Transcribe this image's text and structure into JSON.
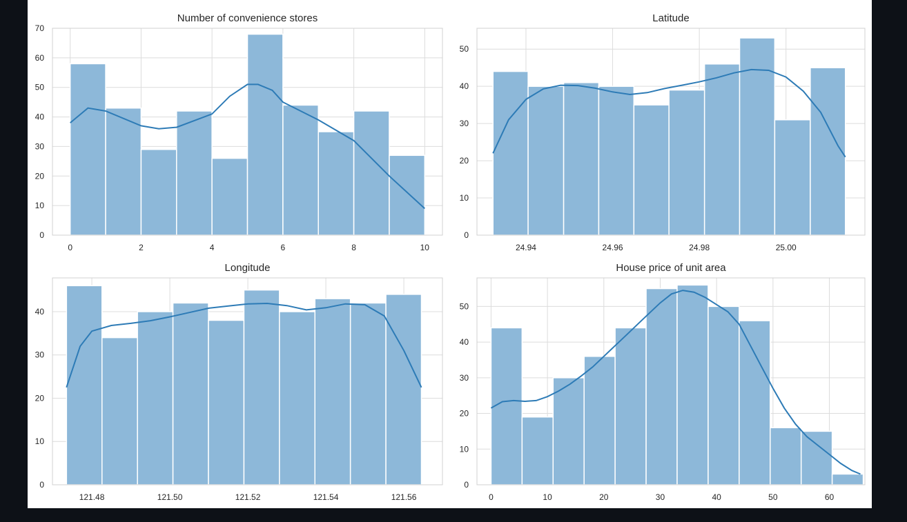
{
  "colors": {
    "page_background": "#0d1117",
    "panel_background": "#ffffff",
    "bar_fill": "#8db8d9",
    "kde_line": "#2d7bb6",
    "grid": "#dcdcdc"
  },
  "chart_data": [
    {
      "type": "bar",
      "subtype": "histogram-with-kde",
      "title": "Number of convenience stores",
      "xlabel": "",
      "ylabel": "",
      "xlim": [
        -0.5,
        10.5
      ],
      "ylim": [
        0,
        70
      ],
      "xticks": [
        0,
        2,
        4,
        6,
        8,
        10
      ],
      "xtick_labels": [
        "0",
        "2",
        "4",
        "6",
        "8",
        "10"
      ],
      "yticks": [
        0,
        10,
        20,
        30,
        40,
        50,
        60,
        70
      ],
      "ytick_labels": [
        "0",
        "10",
        "20",
        "30",
        "40",
        "50",
        "60",
        "70"
      ],
      "bin_edges": [
        0,
        1,
        2,
        3,
        4,
        5,
        6,
        7,
        8,
        9,
        10
      ],
      "values": [
        58,
        43,
        29,
        42,
        26,
        68,
        44,
        35,
        42,
        27
      ],
      "kde": {
        "x": [
          0,
          0.5,
          1,
          2,
          2.5,
          3,
          4,
          4.5,
          5,
          5.3,
          5.7,
          6,
          7,
          8,
          9,
          10
        ],
        "y": [
          38,
          43,
          42,
          37,
          36,
          36.5,
          41,
          47,
          51,
          51,
          49,
          45,
          39,
          32,
          20,
          9
        ]
      },
      "grid": true
    },
    {
      "type": "bar",
      "subtype": "histogram-with-kde",
      "title": "Latitude",
      "xlabel": "",
      "ylabel": "",
      "xlim": [
        24.9287,
        25.0182
      ],
      "ylim": [
        0,
        55.6
      ],
      "xticks": [
        24.94,
        24.96,
        24.98,
        25.0
      ],
      "xtick_labels": [
        "24.94",
        "24.96",
        "24.98",
        "25.00"
      ],
      "yticks": [
        0,
        10,
        20,
        30,
        40,
        50
      ],
      "ytick_labels": [
        "0",
        "10",
        "20",
        "30",
        "40",
        "50"
      ],
      "bin_edges": [
        24.9324,
        24.9405,
        24.9487,
        24.9568,
        24.9649,
        24.973,
        24.9812,
        24.9893,
        24.9974,
        25.0056,
        25.0137
      ],
      "values": [
        44,
        40,
        41,
        40,
        35,
        39,
        46,
        53,
        31,
        45
      ],
      "kde": {
        "x": [
          24.9324,
          24.936,
          24.94,
          24.944,
          24.948,
          24.952,
          24.956,
          24.96,
          24.964,
          24.968,
          24.972,
          24.976,
          24.98,
          24.984,
          24.988,
          24.992,
          24.996,
          25.0,
          25.004,
          25.008,
          25.012,
          25.0137
        ],
        "y": [
          22,
          31,
          36.5,
          39.3,
          40.3,
          40.2,
          39.5,
          38.5,
          37.8,
          38.3,
          39.4,
          40.3,
          41.2,
          42.3,
          43.6,
          44.5,
          44.3,
          42.5,
          38.7,
          33,
          24,
          21
        ]
      },
      "grid": true
    },
    {
      "type": "bar",
      "subtype": "histogram-with-kde",
      "title": "Longitude",
      "xlabel": "",
      "ylabel": "",
      "xlim": [
        121.4699,
        121.5699
      ],
      "ylim": [
        0,
        47.8
      ],
      "xticks": [
        121.48,
        121.5,
        121.52,
        121.54,
        121.56
      ],
      "xtick_labels": [
        "121.48",
        "121.50",
        "121.52",
        "121.54",
        "121.56"
      ],
      "yticks": [
        0,
        10,
        20,
        30,
        40
      ],
      "ytick_labels": [
        "0",
        "10",
        "20",
        "30",
        "40"
      ],
      "bin_edges": [
        121.4735,
        121.4826,
        121.4917,
        121.5008,
        121.5099,
        121.519,
        121.5281,
        121.5372,
        121.5463,
        121.5554,
        121.5645
      ],
      "values": [
        46,
        34,
        40,
        42,
        38,
        45,
        40,
        43,
        42,
        44
      ],
      "kde": {
        "x": [
          121.4735,
          121.477,
          121.48,
          121.485,
          121.49,
          121.495,
          121.5,
          121.505,
          121.51,
          121.515,
          121.52,
          121.525,
          121.53,
          121.535,
          121.54,
          121.545,
          121.55,
          121.555,
          121.56,
          121.5645
        ],
        "y": [
          22.5,
          32,
          35.5,
          36.8,
          37.3,
          37.9,
          38.8,
          39.8,
          40.8,
          41.3,
          41.8,
          41.9,
          41.4,
          40.4,
          40.9,
          41.8,
          41.6,
          39,
          31,
          22.5
        ]
      },
      "grid": true
    },
    {
      "type": "bar",
      "subtype": "histogram-with-kde",
      "title": "House price of unit area",
      "xlabel": "",
      "ylabel": "",
      "xlim": [
        -2.5,
        66.3
      ],
      "ylim": [
        0,
        58
      ],
      "xticks": [
        0,
        10,
        20,
        30,
        40,
        50,
        60
      ],
      "xtick_labels": [
        "0",
        "10",
        "20",
        "30",
        "40",
        "50",
        "60"
      ],
      "yticks": [
        0,
        10,
        20,
        30,
        40,
        50
      ],
      "ytick_labels": [
        "0",
        "10",
        "20",
        "30",
        "40",
        "50"
      ],
      "bin_edges": [
        0,
        5.5,
        11,
        16.5,
        22,
        27.5,
        33,
        38.5,
        44,
        49.5,
        55,
        60.5,
        66
      ],
      "values": [
        44,
        19,
        30,
        36,
        44,
        55,
        56,
        50,
        46,
        16,
        15,
        3
      ],
      "kde": {
        "x": [
          0,
          2,
          4,
          6,
          8,
          10,
          12,
          14,
          16,
          18,
          20,
          22,
          24,
          26,
          28,
          30,
          32,
          34,
          36,
          38,
          40,
          42,
          44,
          46,
          48,
          50,
          52,
          54,
          56,
          58,
          60,
          62,
          64,
          65.5
        ],
        "y": [
          21.5,
          23.3,
          23.6,
          23.4,
          23.6,
          24.7,
          26.3,
          28.2,
          30.5,
          33,
          36,
          39,
          42,
          45,
          48,
          51,
          53.5,
          54.5,
          54,
          52.5,
          50.5,
          48.5,
          45,
          39,
          33,
          27,
          21.5,
          17,
          13.5,
          11,
          8.5,
          6,
          4,
          3
        ]
      },
      "grid": true
    }
  ]
}
